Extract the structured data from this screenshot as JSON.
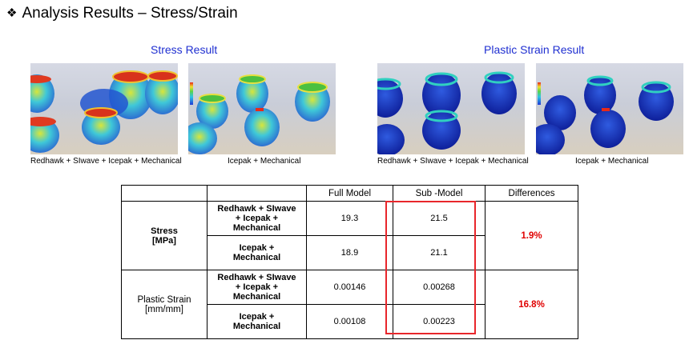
{
  "title": "Analysis Results – Stress/Strain",
  "bullet": "❖",
  "sections": {
    "stress": "Stress Result",
    "strain": "Plastic Strain Result"
  },
  "captions": {
    "img1": "Redhawk + SIwave + Icepak + Mechanical",
    "img2": "Icepak + Mechanical",
    "img3": "Redhawk + SIwave + Icepak + Mechanical",
    "img4": "Icepak + Mechanical"
  },
  "table": {
    "headers": [
      "",
      "",
      "Full Model",
      "Sub -Model",
      "Differences"
    ],
    "groups": [
      {
        "name_line1": "Stress",
        "name_line2": "[MPa]",
        "difference": "1.9%",
        "rows": [
          {
            "method": [
              "Redhawk + SIwave",
              "+ Icepak +",
              "Mechanical"
            ],
            "full": "19.3",
            "sub": "21.5"
          },
          {
            "method": [
              "Icepak +",
              "Mechanical"
            ],
            "full": "18.9",
            "sub": "21.1"
          }
        ]
      },
      {
        "name_line1": "Plastic Strain",
        "name_line2": "[mm/mm]",
        "difference": "16.8%",
        "rows": [
          {
            "method": [
              "Redhawk + SIwave",
              "+ Icepak +",
              "Mechanical"
            ],
            "full": "0.00146",
            "sub": "0.00268"
          },
          {
            "method": [
              "Icepak +",
              "Mechanical"
            ],
            "full": "0.00108",
            "sub": "0.00223"
          }
        ]
      }
    ]
  },
  "colors": {
    "section_title": "#1f2fd1",
    "difference_text": "#e00000",
    "highlight_box": "#e8262b"
  }
}
